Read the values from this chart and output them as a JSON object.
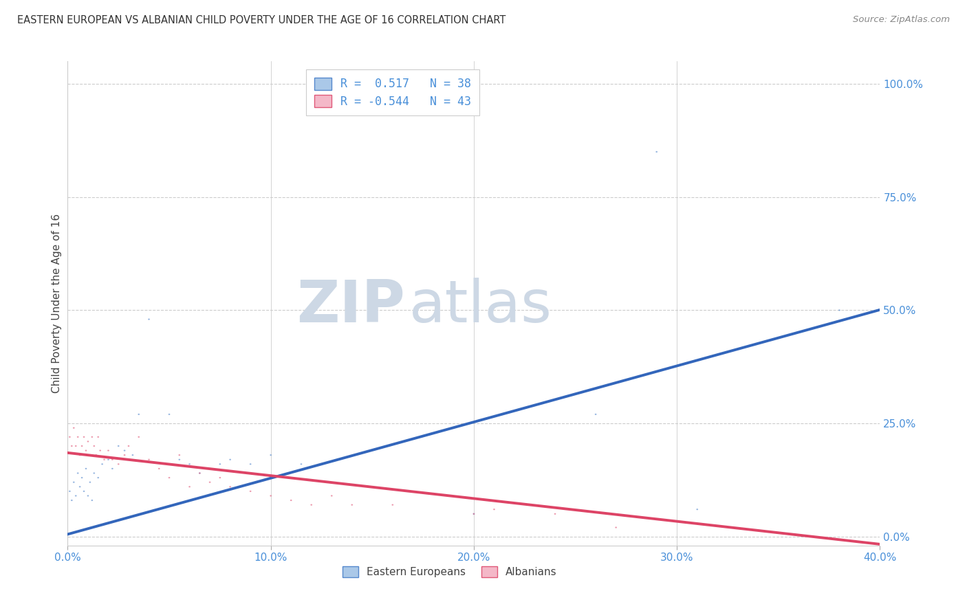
{
  "title": "EASTERN EUROPEAN VS ALBANIAN CHILD POVERTY UNDER THE AGE OF 16 CORRELATION CHART",
  "source": "Source: ZipAtlas.com",
  "ylabel": "Child Poverty Under the Age of 16",
  "xlim": [
    0.0,
    0.4
  ],
  "ylim": [
    -0.02,
    1.05
  ],
  "plot_ylim": [
    0.0,
    1.0
  ],
  "xticks": [
    0.0,
    0.1,
    0.2,
    0.3,
    0.4
  ],
  "xtick_labels": [
    "0.0%",
    "10.0%",
    "20.0%",
    "30.0%",
    "40.0%"
  ],
  "yticks_right": [
    0.0,
    0.25,
    0.5,
    0.75,
    1.0
  ],
  "ytick_labels_right": [
    "0.0%",
    "25.0%",
    "50.0%",
    "75.0%",
    "100.0%"
  ],
  "background_color": "#ffffff",
  "grid_color": "#cccccc",
  "title_color": "#333333",
  "right_axis_color": "#4a90d9",
  "blue_fill": "#aac8e8",
  "pink_fill": "#f4b8c8",
  "blue_edge": "#5588cc",
  "pink_edge": "#e05878",
  "blue_line_color": "#3366bb",
  "pink_line_color": "#dd4466",
  "watermark_color": "#cdd8e5",
  "legend_eastern": "Eastern Europeans",
  "legend_albanian": "Albanians",
  "R_blue": 0.517,
  "N_blue": 38,
  "R_pink": -0.544,
  "N_pink": 43,
  "blue_intercept": 0.005,
  "blue_slope": 1.24,
  "pink_intercept": 0.185,
  "pink_slope": -0.505,
  "blue_x": [
    0.001,
    0.002,
    0.003,
    0.004,
    0.005,
    0.006,
    0.007,
    0.008,
    0.009,
    0.01,
    0.011,
    0.012,
    0.013,
    0.015,
    0.017,
    0.02,
    0.022,
    0.025,
    0.028,
    0.03,
    0.032,
    0.035,
    0.04,
    0.05,
    0.055,
    0.06,
    0.065,
    0.07,
    0.075,
    0.08,
    0.09,
    0.1,
    0.115,
    0.2,
    0.26,
    0.29,
    0.31,
    0.38
  ],
  "blue_y": [
    0.1,
    0.08,
    0.12,
    0.09,
    0.14,
    0.11,
    0.13,
    0.1,
    0.15,
    0.09,
    0.12,
    0.08,
    0.14,
    0.13,
    0.16,
    0.17,
    0.15,
    0.2,
    0.19,
    0.17,
    0.18,
    0.27,
    0.48,
    0.27,
    0.17,
    0.16,
    0.14,
    0.15,
    0.16,
    0.17,
    0.16,
    0.18,
    0.16,
    0.05,
    0.27,
    0.85,
    0.06,
    0.5
  ],
  "pink_x": [
    0.001,
    0.002,
    0.003,
    0.004,
    0.005,
    0.006,
    0.007,
    0.008,
    0.009,
    0.01,
    0.011,
    0.012,
    0.013,
    0.014,
    0.015,
    0.016,
    0.018,
    0.02,
    0.022,
    0.025,
    0.028,
    0.03,
    0.035,
    0.04,
    0.045,
    0.05,
    0.055,
    0.06,
    0.065,
    0.07,
    0.075,
    0.08,
    0.09,
    0.1,
    0.11,
    0.12,
    0.13,
    0.14,
    0.16,
    0.2,
    0.21,
    0.24,
    0.27
  ],
  "pink_y": [
    0.22,
    0.2,
    0.24,
    0.2,
    0.22,
    0.18,
    0.2,
    0.22,
    0.19,
    0.21,
    0.18,
    0.22,
    0.2,
    0.18,
    0.22,
    0.19,
    0.17,
    0.19,
    0.17,
    0.16,
    0.18,
    0.2,
    0.22,
    0.17,
    0.15,
    0.13,
    0.18,
    0.11,
    0.14,
    0.12,
    0.13,
    0.11,
    0.1,
    0.09,
    0.08,
    0.07,
    0.09,
    0.07,
    0.07,
    0.05,
    0.06,
    0.05,
    0.02
  ]
}
